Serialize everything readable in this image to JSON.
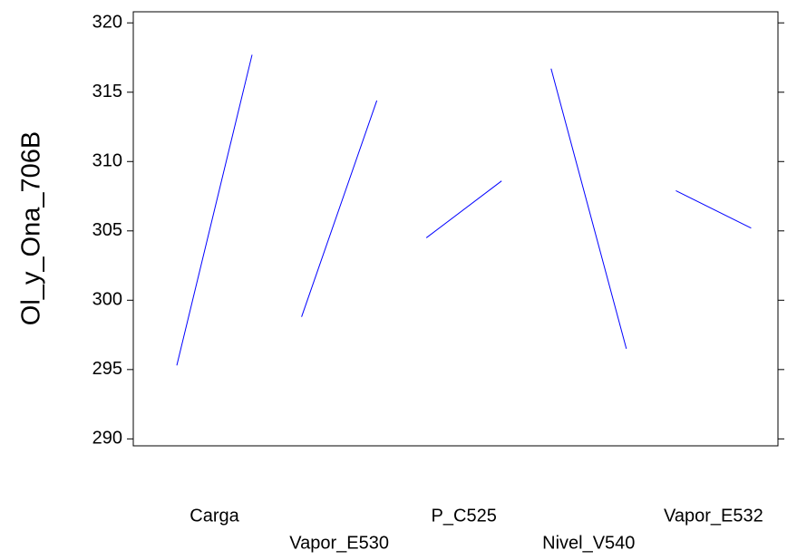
{
  "chart_data": {
    "type": "line",
    "y_label": "Ol_y_Ona_706B",
    "categories": [
      "Carga",
      "Vapor_E530",
      "P_C525",
      "Nivel_V540",
      "Vapor_E532"
    ],
    "values": [
      [
        295.3,
        317.7
      ],
      [
        298.8,
        314.4
      ],
      [
        304.5,
        308.6
      ],
      [
        316.7,
        296.5
      ],
      [
        307.9,
        305.2
      ]
    ],
    "color": "#0000ff",
    "ylim": [
      289.5,
      320.8
    ],
    "yticks": [
      290,
      295,
      300,
      305,
      310,
      315,
      320
    ]
  }
}
